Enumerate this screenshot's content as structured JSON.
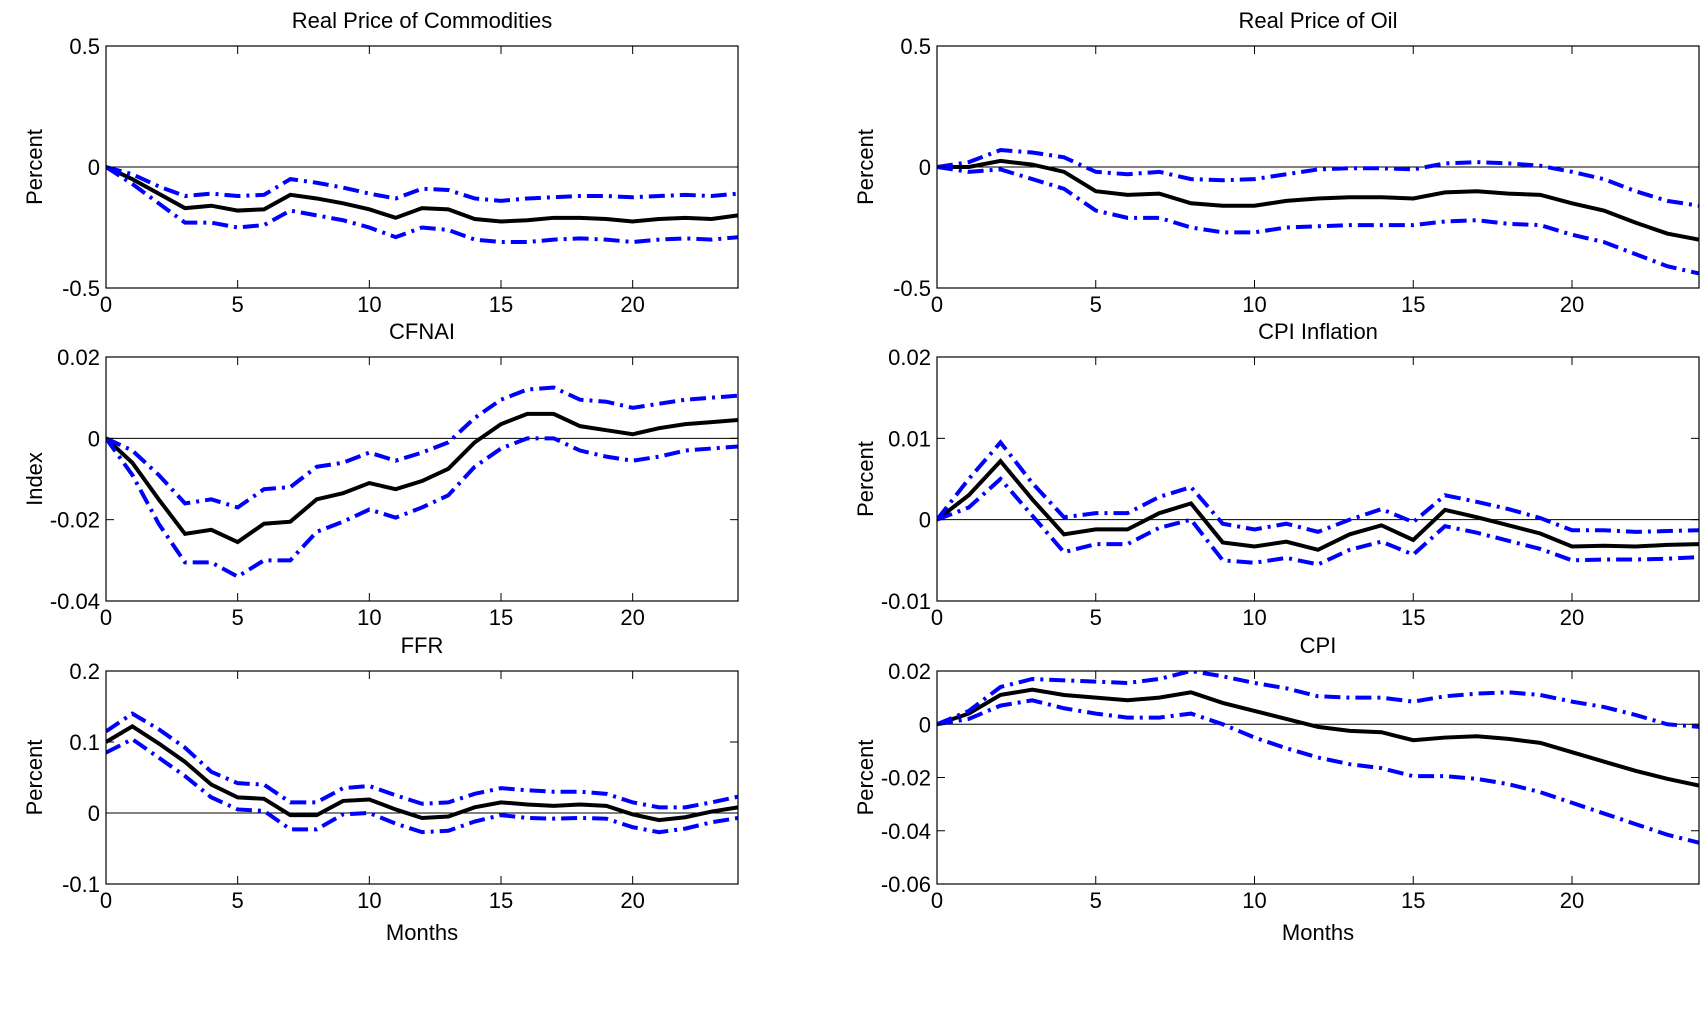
{
  "chart_data": [
    {
      "type": "line",
      "title": "Real Price of Commodities",
      "xlabel": "",
      "ylabel": "Percent",
      "xlim": [
        0,
        24
      ],
      "ylim": [
        -0.5,
        0.5
      ],
      "xticks": [
        0,
        5,
        10,
        15,
        20
      ],
      "yticks": [
        -0.5,
        0,
        0.5
      ],
      "ytick_labels": [
        "-0.5",
        "0",
        "0.5"
      ],
      "x": [
        0,
        1,
        2,
        3,
        4,
        5,
        6,
        7,
        8,
        9,
        10,
        11,
        12,
        13,
        14,
        15,
        16,
        17,
        18,
        19,
        20,
        21,
        22,
        23,
        24
      ],
      "series": [
        {
          "role": "estimate",
          "color": "#000000",
          "values": [
            0,
            -0.05,
            -0.11,
            -0.17,
            -0.16,
            -0.18,
            -0.175,
            -0.115,
            -0.13,
            -0.15,
            -0.175,
            -0.21,
            -0.17,
            -0.175,
            -0.215,
            -0.225,
            -0.22,
            -0.21,
            -0.21,
            -0.215,
            -0.225,
            -0.215,
            -0.21,
            -0.215,
            -0.2
          ]
        },
        {
          "role": "upper",
          "color": "#0000ff",
          "values": [
            0,
            -0.03,
            -0.08,
            -0.12,
            -0.11,
            -0.12,
            -0.115,
            -0.05,
            -0.065,
            -0.085,
            -0.11,
            -0.13,
            -0.09,
            -0.095,
            -0.13,
            -0.14,
            -0.13,
            -0.125,
            -0.12,
            -0.12,
            -0.125,
            -0.12,
            -0.115,
            -0.12,
            -0.11
          ]
        },
        {
          "role": "lower",
          "color": "#0000ff",
          "values": [
            0,
            -0.07,
            -0.15,
            -0.23,
            -0.23,
            -0.25,
            -0.24,
            -0.18,
            -0.2,
            -0.22,
            -0.25,
            -0.29,
            -0.25,
            -0.26,
            -0.3,
            -0.31,
            -0.31,
            -0.3,
            -0.295,
            -0.3,
            -0.31,
            -0.3,
            -0.295,
            -0.3,
            -0.29
          ]
        }
      ]
    },
    {
      "type": "line",
      "title": "Real Price of Oil",
      "xlabel": "",
      "ylabel": "Percent",
      "xlim": [
        0,
        24
      ],
      "ylim": [
        -0.5,
        0.5
      ],
      "xticks": [
        0,
        5,
        10,
        15,
        20
      ],
      "yticks": [
        -0.5,
        0,
        0.5
      ],
      "ytick_labels": [
        "-0.5",
        "0",
        "0.5"
      ],
      "x": [
        0,
        1,
        2,
        3,
        4,
        5,
        6,
        7,
        8,
        9,
        10,
        11,
        12,
        13,
        14,
        15,
        16,
        17,
        18,
        19,
        20,
        21,
        22,
        23,
        24
      ],
      "series": [
        {
          "role": "estimate",
          "color": "#000000",
          "values": [
            0,
            0.0,
            0.025,
            0.01,
            -0.02,
            -0.1,
            -0.115,
            -0.11,
            -0.15,
            -0.16,
            -0.16,
            -0.14,
            -0.13,
            -0.125,
            -0.125,
            -0.13,
            -0.105,
            -0.1,
            -0.11,
            -0.115,
            -0.15,
            -0.18,
            -0.23,
            -0.275,
            -0.3
          ]
        },
        {
          "role": "upper",
          "color": "#0000ff",
          "values": [
            0,
            0.02,
            0.07,
            0.06,
            0.04,
            -0.02,
            -0.03,
            -0.02,
            -0.05,
            -0.055,
            -0.05,
            -0.03,
            -0.01,
            -0.005,
            -0.005,
            -0.01,
            0.015,
            0.02,
            0.015,
            0.005,
            -0.02,
            -0.05,
            -0.1,
            -0.14,
            -0.16
          ]
        },
        {
          "role": "lower",
          "color": "#0000ff",
          "values": [
            0,
            -0.02,
            -0.01,
            -0.05,
            -0.09,
            -0.18,
            -0.21,
            -0.21,
            -0.25,
            -0.27,
            -0.27,
            -0.25,
            -0.245,
            -0.24,
            -0.24,
            -0.24,
            -0.225,
            -0.22,
            -0.235,
            -0.24,
            -0.28,
            -0.31,
            -0.36,
            -0.41,
            -0.44
          ]
        }
      ]
    },
    {
      "type": "line",
      "title": "CFNAI",
      "xlabel": "",
      "ylabel": "Index",
      "xlim": [
        0,
        24
      ],
      "ylim": [
        -0.04,
        0.02
      ],
      "xticks": [
        0,
        5,
        10,
        15,
        20
      ],
      "yticks": [
        -0.04,
        -0.02,
        0,
        0.02
      ],
      "ytick_labels": [
        "-0.04",
        "-0.02",
        "0",
        "0.02"
      ],
      "x": [
        0,
        1,
        2,
        3,
        4,
        5,
        6,
        7,
        8,
        9,
        10,
        11,
        12,
        13,
        14,
        15,
        16,
        17,
        18,
        19,
        20,
        21,
        22,
        23,
        24
      ],
      "series": [
        {
          "role": "estimate",
          "color": "#000000",
          "values": [
            0,
            -0.006,
            -0.015,
            -0.0235,
            -0.0225,
            -0.0255,
            -0.021,
            -0.0205,
            -0.015,
            -0.0135,
            -0.011,
            -0.0125,
            -0.0105,
            -0.0075,
            -0.001,
            0.0035,
            0.006,
            0.006,
            0.003,
            0.002,
            0.001,
            0.0025,
            0.0035,
            0.004,
            0.0045
          ]
        },
        {
          "role": "upper",
          "color": "#0000ff",
          "values": [
            0,
            -0.003,
            -0.009,
            -0.016,
            -0.015,
            -0.017,
            -0.0125,
            -0.012,
            -0.007,
            -0.006,
            -0.0035,
            -0.0055,
            -0.0035,
            -0.001,
            0.005,
            0.0095,
            0.012,
            0.0125,
            0.0095,
            0.009,
            0.0075,
            0.0085,
            0.0095,
            0.01,
            0.0105
          ]
        },
        {
          "role": "lower",
          "color": "#0000ff",
          "values": [
            0,
            -0.009,
            -0.021,
            -0.0305,
            -0.0305,
            -0.034,
            -0.03,
            -0.03,
            -0.023,
            -0.0205,
            -0.0175,
            -0.0195,
            -0.017,
            -0.014,
            -0.007,
            -0.0025,
            0.0,
            0.0,
            -0.003,
            -0.0045,
            -0.0055,
            -0.0045,
            -0.003,
            -0.0025,
            -0.002
          ]
        }
      ]
    },
    {
      "type": "line",
      "title": "CPI Inflation",
      "xlabel": "",
      "ylabel": "Percent",
      "xlim": [
        0,
        24
      ],
      "ylim": [
        -0.01,
        0.02
      ],
      "xticks": [
        0,
        5,
        10,
        15,
        20
      ],
      "yticks": [
        -0.01,
        0,
        0.01,
        0.02
      ],
      "ytick_labels": [
        "-0.01",
        "0",
        "0.01",
        "0.02"
      ],
      "x": [
        0,
        1,
        2,
        3,
        4,
        5,
        6,
        7,
        8,
        9,
        10,
        11,
        12,
        13,
        14,
        15,
        16,
        17,
        18,
        19,
        20,
        21,
        22,
        23,
        24
      ],
      "series": [
        {
          "role": "estimate",
          "color": "#000000",
          "values": [
            0,
            0.003,
            0.0072,
            0.0025,
            -0.0018,
            -0.0012,
            -0.0012,
            0.0008,
            0.002,
            -0.0028,
            -0.0033,
            -0.0027,
            -0.0037,
            -0.0018,
            -0.0007,
            -0.0025,
            0.0012,
            0.0003,
            -0.0007,
            -0.0017,
            -0.0033,
            -0.0032,
            -0.0033,
            -0.0031,
            -0.003
          ]
        },
        {
          "role": "upper",
          "color": "#0000ff",
          "values": [
            0,
            0.005,
            0.0095,
            0.0045,
            0.0003,
            0.0008,
            0.0008,
            0.0028,
            0.004,
            -0.0005,
            -0.0012,
            -0.0005,
            -0.0015,
            0.0,
            0.0013,
            -0.0003,
            0.003,
            0.0022,
            0.0013,
            0.0002,
            -0.0013,
            -0.0013,
            -0.0015,
            -0.0014,
            -0.0013
          ]
        },
        {
          "role": "lower",
          "color": "#0000ff",
          "values": [
            0,
            0.0015,
            0.005,
            0.0005,
            -0.004,
            -0.003,
            -0.003,
            -0.001,
            0.0,
            -0.005,
            -0.0053,
            -0.0047,
            -0.0055,
            -0.0037,
            -0.0027,
            -0.0043,
            -0.0008,
            -0.0016,
            -0.0026,
            -0.0036,
            -0.005,
            -0.0049,
            -0.0049,
            -0.0048,
            -0.0046
          ]
        }
      ]
    },
    {
      "type": "line",
      "title": "FFR",
      "xlabel": "Months",
      "ylabel": "Percent",
      "xlim": [
        0,
        24
      ],
      "ylim": [
        -0.1,
        0.2
      ],
      "xticks": [
        0,
        5,
        10,
        15,
        20
      ],
      "yticks": [
        -0.1,
        0,
        0.1,
        0.2
      ],
      "ytick_labels": [
        "-0.1",
        "0",
        "0.1",
        "0.2"
      ],
      "x": [
        0,
        1,
        2,
        3,
        4,
        5,
        6,
        7,
        8,
        9,
        10,
        11,
        12,
        13,
        14,
        15,
        16,
        17,
        18,
        19,
        20,
        21,
        22,
        23,
        24
      ],
      "series": [
        {
          "role": "estimate",
          "color": "#000000",
          "values": [
            0.1,
            0.122,
            0.098,
            0.072,
            0.04,
            0.022,
            0.02,
            -0.003,
            -0.003,
            0.017,
            0.019,
            0.005,
            -0.007,
            -0.005,
            0.008,
            0.015,
            0.012,
            0.01,
            0.012,
            0.01,
            -0.002,
            -0.01,
            -0.006,
            0.002,
            0.008
          ]
        },
        {
          "role": "upper",
          "color": "#0000ff",
          "values": [
            0.115,
            0.14,
            0.118,
            0.092,
            0.058,
            0.042,
            0.04,
            0.015,
            0.015,
            0.035,
            0.038,
            0.025,
            0.013,
            0.015,
            0.027,
            0.035,
            0.032,
            0.03,
            0.03,
            0.027,
            0.015,
            0.008,
            0.008,
            0.015,
            0.023
          ]
        },
        {
          "role": "lower",
          "color": "#0000ff",
          "values": [
            0.085,
            0.104,
            0.078,
            0.052,
            0.022,
            0.005,
            0.003,
            -0.023,
            -0.023,
            -0.002,
            0.0,
            -0.015,
            -0.027,
            -0.025,
            -0.012,
            -0.003,
            -0.007,
            -0.008,
            -0.007,
            -0.008,
            -0.02,
            -0.027,
            -0.022,
            -0.013,
            -0.007
          ]
        }
      ]
    },
    {
      "type": "line",
      "title": "CPI",
      "xlabel": "Months",
      "ylabel": "Percent",
      "xlim": [
        0,
        24
      ],
      "ylim": [
        -0.06,
        0.02
      ],
      "xticks": [
        0,
        5,
        10,
        15,
        20
      ],
      "yticks": [
        -0.06,
        -0.04,
        -0.02,
        0,
        0.02
      ],
      "ytick_labels": [
        "-0.06",
        "-0.04",
        "-0.02",
        "0",
        "0.02"
      ],
      "x": [
        0,
        1,
        2,
        3,
        4,
        5,
        6,
        7,
        8,
        9,
        10,
        11,
        12,
        13,
        14,
        15,
        16,
        17,
        18,
        19,
        20,
        21,
        22,
        23,
        24
      ],
      "series": [
        {
          "role": "estimate",
          "color": "#000000",
          "values": [
            0,
            0.004,
            0.011,
            0.013,
            0.011,
            0.01,
            0.009,
            0.01,
            0.012,
            0.008,
            0.005,
            0.002,
            -0.001,
            -0.0025,
            -0.003,
            -0.006,
            -0.005,
            -0.0045,
            -0.0055,
            -0.007,
            -0.0105,
            -0.014,
            -0.0175,
            -0.0205,
            -0.023
          ]
        },
        {
          "role": "upper",
          "color": "#0000ff",
          "values": [
            0,
            0.005,
            0.014,
            0.017,
            0.0165,
            0.016,
            0.0155,
            0.017,
            0.02,
            0.018,
            0.0155,
            0.0135,
            0.0105,
            0.01,
            0.01,
            0.0085,
            0.0105,
            0.0115,
            0.012,
            0.011,
            0.0085,
            0.0065,
            0.0035,
            0.0,
            -0.001
          ]
        },
        {
          "role": "lower",
          "color": "#0000ff",
          "values": [
            0,
            0.002,
            0.007,
            0.009,
            0.006,
            0.004,
            0.0025,
            0.0025,
            0.004,
            0.0,
            -0.005,
            -0.009,
            -0.0125,
            -0.015,
            -0.0165,
            -0.0195,
            -0.0195,
            -0.0205,
            -0.0225,
            -0.0255,
            -0.0295,
            -0.0335,
            -0.0375,
            -0.0415,
            -0.0445
          ]
        }
      ]
    }
  ]
}
